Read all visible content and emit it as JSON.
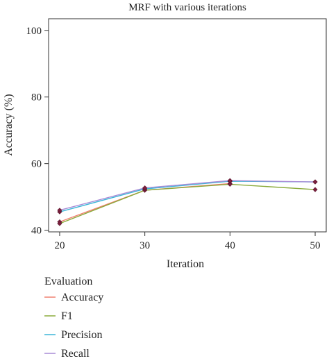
{
  "chart_data": {
    "type": "line",
    "title": "MRF with various iterations",
    "xlabel": "Iteration",
    "ylabel": "Accuracy (%)",
    "x": [
      20,
      30,
      40,
      50
    ],
    "xlim": [
      18.7,
      51.3
    ],
    "ylim": [
      39.5,
      103.5
    ],
    "xticks": [
      "20",
      "30",
      "40",
      "50"
    ],
    "yticks": [
      "40",
      "60",
      "80",
      "100"
    ],
    "grid": false,
    "legend_title": "Evaluation",
    "legend_position": "bottom-left",
    "marker_color": "#7a1f3d",
    "series": [
      {
        "name": "Accuracy",
        "color": "#f08070",
        "values": [
          42.5,
          52.0,
          54.0,
          null
        ]
      },
      {
        "name": "F1",
        "color": "#8aaa3a",
        "values": [
          42.0,
          52.0,
          53.8,
          52.2
        ]
      },
      {
        "name": "Precision",
        "color": "#3cb6d8",
        "values": [
          45.5,
          52.4,
          54.7,
          54.5
        ]
      },
      {
        "name": "Recall",
        "color": "#a98bd6",
        "values": [
          46.0,
          52.7,
          54.9,
          54.5
        ]
      }
    ]
  }
}
